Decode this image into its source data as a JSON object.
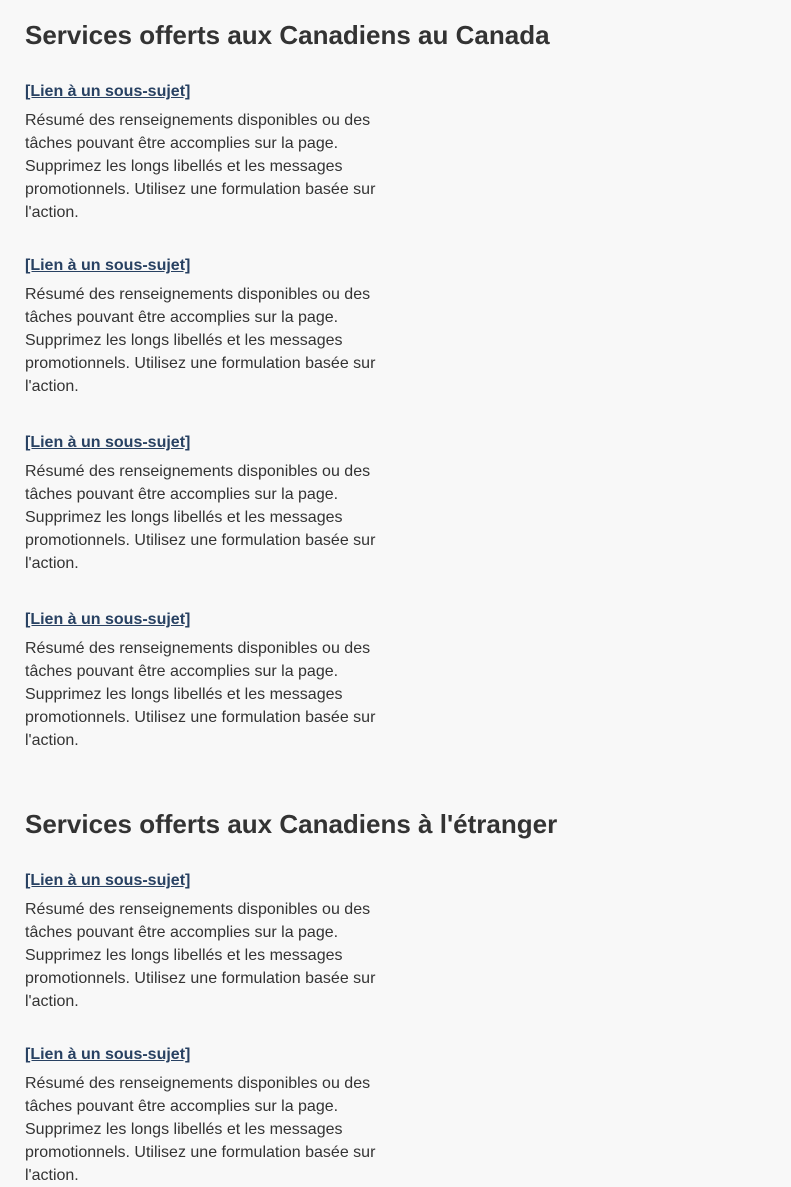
{
  "sections": [
    {
      "title": "Services offerts aux Canadiens au Canada",
      "items": [
        {
          "link": "[Lien à un sous-sujet]",
          "summary": "Résumé des renseignements disponibles ou des tâches pouvant être accomplies sur la page. Supprimez les longs libellés et les messages promotionnels. Utilisez une formulation basée sur l'action."
        },
        {
          "link": "[Lien à un sous-sujet]",
          "summary": "Résumé des renseignements disponibles ou des tâches pouvant être accomplies sur la page. Supprimez les longs libellés et les messages promotionnels. Utilisez une formulation basée sur l'action."
        },
        {
          "link": "[Lien à un sous-sujet]",
          "summary": "Résumé des renseignements disponibles ou des tâches pouvant être accomplies sur la page. Supprimez les longs libellés et les messages promotionnels. Utilisez une formulation basée sur l'action."
        },
        {
          "link": "[Lien à un sous-sujet]",
          "summary": "Résumé des renseignements disponibles ou des tâches pouvant être accomplies sur la page. Supprimez les longs libellés et les messages promotionnels. Utilisez une formulation basée sur l'action."
        }
      ]
    },
    {
      "title": "Services offerts aux Canadiens à l'étranger",
      "items": [
        {
          "link": "[Lien à un sous-sujet]",
          "summary": "Résumé des renseignements disponibles ou des tâches pouvant être accomplies sur la page. Supprimez les longs libellés et les messages promotionnels. Utilisez une formulation basée sur l'action."
        },
        {
          "link": "[Lien à un sous-sujet]",
          "summary": "Résumé des renseignements disponibles ou des tâches pouvant être accomplies sur la page. Supprimez les longs libellés et les messages promotionnels. Utilisez une formulation basée sur l'action."
        }
      ]
    }
  ],
  "colors": {
    "link": "#284162",
    "text": "#333333",
    "background": "#f8f8f8"
  }
}
